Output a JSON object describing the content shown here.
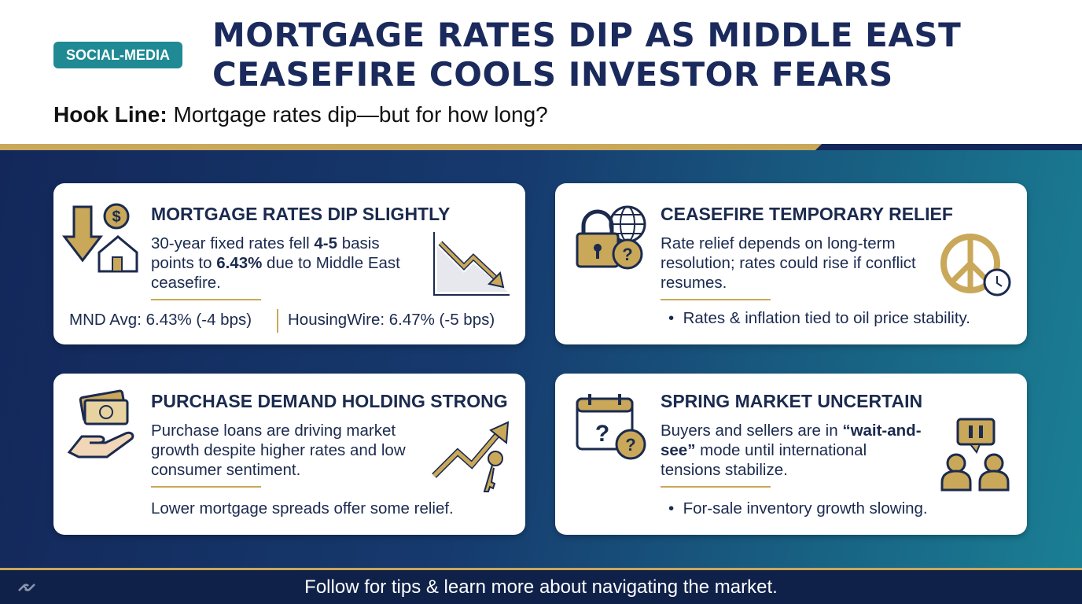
{
  "header": {
    "badge": "SOCIAL-MEDIA",
    "title": [
      "MORTGAGE RATES DIP AS MIDDLE EAST",
      "CEASEFIRE COOLS INVESTOR FEARS"
    ],
    "hook_label": "Hook Line:",
    "hook_text": "Mortgage rates dip—but for how long?"
  },
  "cards": [
    {
      "title": "MORTGAGE RATES DIP SLIGHTLY",
      "body": [
        "30-year fixed rates fell ",
        "4-5",
        " basis points to ",
        "6.43%",
        " due to Middle East ceasefire."
      ],
      "stats": [
        "MND Avg: 6.43% (-4 bps)",
        "HousingWire: 6.47% (-5 bps)"
      ]
    },
    {
      "title": "CEASEFIRE TEMPORARY RELIEF",
      "body": [
        "Rate relief depends on long-term resolution; rates could rise if conflict resumes."
      ],
      "bullet": "Rates & inflation tied to oil price stability."
    },
    {
      "title": "PURCHASE DEMAND HOLDING STRONG",
      "body": [
        "Purchase loans are driving market growth despite higher rates and low consumer sentiment."
      ],
      "note": "Lower mortgage spreads offer some relief."
    },
    {
      "title": "SPRING MARKET UNCERTAIN",
      "body": [
        "Buyers and sellers are in ",
        "“wait-and-see”",
        " mode until international tensions stabilize."
      ],
      "bullet": "For-sale inventory growth slowing."
    }
  ],
  "footer": "Follow for tips & learn more about navigating the market."
}
